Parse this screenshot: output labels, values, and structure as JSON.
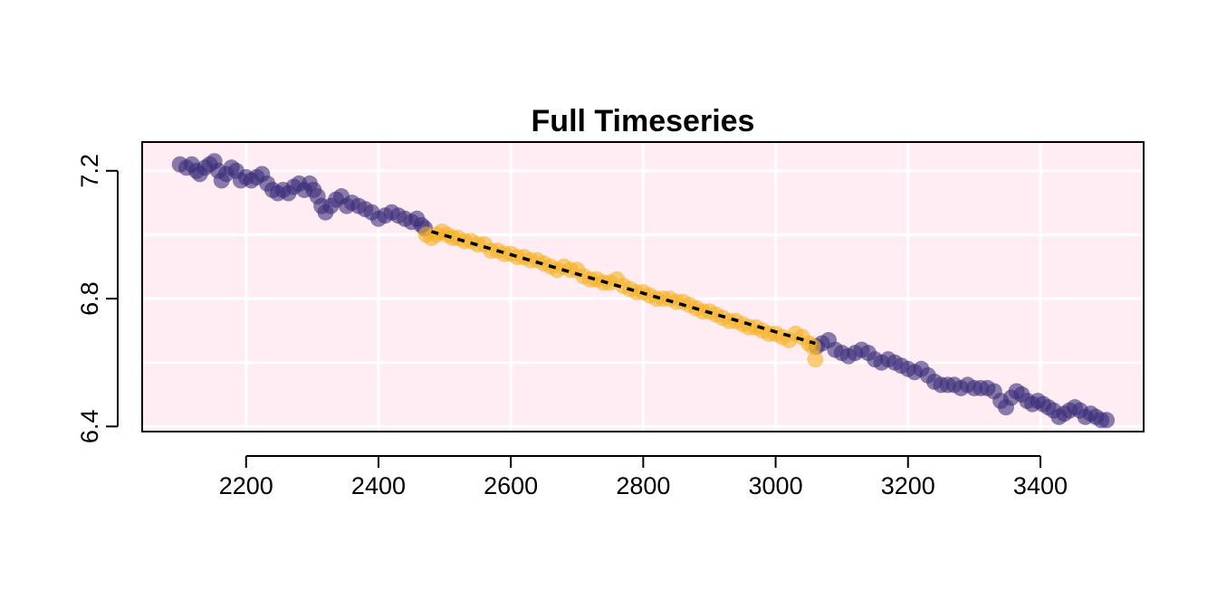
{
  "chart_data": {
    "type": "scatter",
    "title": "Full Timeseries",
    "xlabel": "",
    "ylabel": "",
    "xlim": [
      2043,
      3556
    ],
    "ylim": [
      6.384,
      7.29
    ],
    "xticks": [
      2200,
      2400,
      2600,
      2800,
      3000,
      3200,
      3400
    ],
    "yticks": [
      6.4,
      6.8,
      7.2
    ],
    "ygrid": [
      6.4,
      6.6,
      6.8,
      7.0,
      7.2
    ],
    "grid": true,
    "background_color": "#ffedf3",
    "series": [
      {
        "role": "outside-window",
        "color": "#3b2d7a",
        "points": [
          [
            2100,
            7.22
          ],
          [
            2110,
            7.21
          ],
          [
            2118,
            7.22
          ],
          [
            2125,
            7.2
          ],
          [
            2130,
            7.19
          ],
          [
            2138,
            7.21
          ],
          [
            2145,
            7.22
          ],
          [
            2152,
            7.23
          ],
          [
            2158,
            7.2
          ],
          [
            2163,
            7.17
          ],
          [
            2170,
            7.19
          ],
          [
            2178,
            7.21
          ],
          [
            2185,
            7.2
          ],
          [
            2192,
            7.17
          ],
          [
            2200,
            7.18
          ],
          [
            2208,
            7.17
          ],
          [
            2216,
            7.18
          ],
          [
            2224,
            7.19
          ],
          [
            2232,
            7.16
          ],
          [
            2240,
            7.14
          ],
          [
            2248,
            7.13
          ],
          [
            2256,
            7.14
          ],
          [
            2264,
            7.13
          ],
          [
            2272,
            7.15
          ],
          [
            2280,
            7.16
          ],
          [
            2288,
            7.14
          ],
          [
            2296,
            7.16
          ],
          [
            2302,
            7.14
          ],
          [
            2308,
            7.12
          ],
          [
            2314,
            7.09
          ],
          [
            2320,
            7.07
          ],
          [
            2328,
            7.09
          ],
          [
            2336,
            7.11
          ],
          [
            2344,
            7.12
          ],
          [
            2352,
            7.09
          ],
          [
            2360,
            7.1
          ],
          [
            2370,
            7.09
          ],
          [
            2380,
            7.08
          ],
          [
            2390,
            7.07
          ],
          [
            2400,
            7.05
          ],
          [
            2410,
            7.06
          ],
          [
            2420,
            7.07
          ],
          [
            2430,
            7.06
          ],
          [
            2440,
            7.05
          ],
          [
            2450,
            7.04
          ],
          [
            2458,
            7.05
          ],
          [
            2465,
            7.03
          ],
          [
            2470,
            7.02
          ],
          [
            3062,
            6.65
          ],
          [
            3070,
            6.66
          ],
          [
            3080,
            6.67
          ],
          [
            3090,
            6.64
          ],
          [
            3100,
            6.63
          ],
          [
            3110,
            6.62
          ],
          [
            3120,
            6.63
          ],
          [
            3130,
            6.64
          ],
          [
            3140,
            6.63
          ],
          [
            3150,
            6.61
          ],
          [
            3160,
            6.6
          ],
          [
            3170,
            6.61
          ],
          [
            3180,
            6.6
          ],
          [
            3190,
            6.59
          ],
          [
            3200,
            6.58
          ],
          [
            3210,
            6.57
          ],
          [
            3220,
            6.58
          ],
          [
            3230,
            6.56
          ],
          [
            3240,
            6.54
          ],
          [
            3250,
            6.53
          ],
          [
            3260,
            6.53
          ],
          [
            3270,
            6.53
          ],
          [
            3280,
            6.52
          ],
          [
            3290,
            6.53
          ],
          [
            3300,
            6.52
          ],
          [
            3310,
            6.52
          ],
          [
            3320,
            6.52
          ],
          [
            3330,
            6.51
          ],
          [
            3340,
            6.48
          ],
          [
            3348,
            6.46
          ],
          [
            3356,
            6.49
          ],
          [
            3364,
            6.51
          ],
          [
            3372,
            6.5
          ],
          [
            3380,
            6.48
          ],
          [
            3388,
            6.47
          ],
          [
            3396,
            6.48
          ],
          [
            3404,
            6.47
          ],
          [
            3412,
            6.46
          ],
          [
            3420,
            6.45
          ],
          [
            3428,
            6.43
          ],
          [
            3436,
            6.44
          ],
          [
            3444,
            6.45
          ],
          [
            3452,
            6.46
          ],
          [
            3460,
            6.45
          ],
          [
            3468,
            6.43
          ],
          [
            3476,
            6.44
          ],
          [
            3484,
            6.43
          ],
          [
            3492,
            6.42
          ],
          [
            3500,
            6.42
          ]
        ]
      },
      {
        "role": "window",
        "color": "#f5b122",
        "points": [
          [
            2472,
            7.0
          ],
          [
            2480,
            6.99
          ],
          [
            2488,
            7.0
          ],
          [
            2496,
            7.01
          ],
          [
            2504,
            7.0
          ],
          [
            2512,
            6.99
          ],
          [
            2520,
            6.99
          ],
          [
            2530,
            6.98
          ],
          [
            2540,
            6.98
          ],
          [
            2550,
            6.97
          ],
          [
            2560,
            6.97
          ],
          [
            2570,
            6.95
          ],
          [
            2580,
            6.95
          ],
          [
            2590,
            6.94
          ],
          [
            2600,
            6.94
          ],
          [
            2610,
            6.93
          ],
          [
            2620,
            6.93
          ],
          [
            2630,
            6.92
          ],
          [
            2640,
            6.92
          ],
          [
            2650,
            6.91
          ],
          [
            2660,
            6.9
          ],
          [
            2670,
            6.89
          ],
          [
            2680,
            6.9
          ],
          [
            2690,
            6.89
          ],
          [
            2700,
            6.89
          ],
          [
            2710,
            6.87
          ],
          [
            2720,
            6.86
          ],
          [
            2730,
            6.86
          ],
          [
            2740,
            6.85
          ],
          [
            2750,
            6.85
          ],
          [
            2760,
            6.86
          ],
          [
            2770,
            6.84
          ],
          [
            2780,
            6.83
          ],
          [
            2790,
            6.82
          ],
          [
            2800,
            6.82
          ],
          [
            2810,
            6.81
          ],
          [
            2820,
            6.8
          ],
          [
            2830,
            6.8
          ],
          [
            2840,
            6.8
          ],
          [
            2850,
            6.79
          ],
          [
            2860,
            6.79
          ],
          [
            2870,
            6.78
          ],
          [
            2880,
            6.77
          ],
          [
            2890,
            6.76
          ],
          [
            2900,
            6.76
          ],
          [
            2910,
            6.75
          ],
          [
            2920,
            6.74
          ],
          [
            2930,
            6.73
          ],
          [
            2940,
            6.73
          ],
          [
            2950,
            6.72
          ],
          [
            2960,
            6.71
          ],
          [
            2970,
            6.71
          ],
          [
            2980,
            6.7
          ],
          [
            2990,
            6.69
          ],
          [
            3000,
            6.69
          ],
          [
            3010,
            6.68
          ],
          [
            3020,
            6.67
          ],
          [
            3030,
            6.69
          ],
          [
            3040,
            6.68
          ],
          [
            3050,
            6.66
          ],
          [
            3056,
            6.65
          ],
          [
            3060,
            6.61
          ]
        ]
      }
    ],
    "trend_line": {
      "style": "dashed",
      "color": "#000000",
      "x": [
        2480,
        3060
      ],
      "y": [
        7.01,
        6.66
      ]
    }
  }
}
